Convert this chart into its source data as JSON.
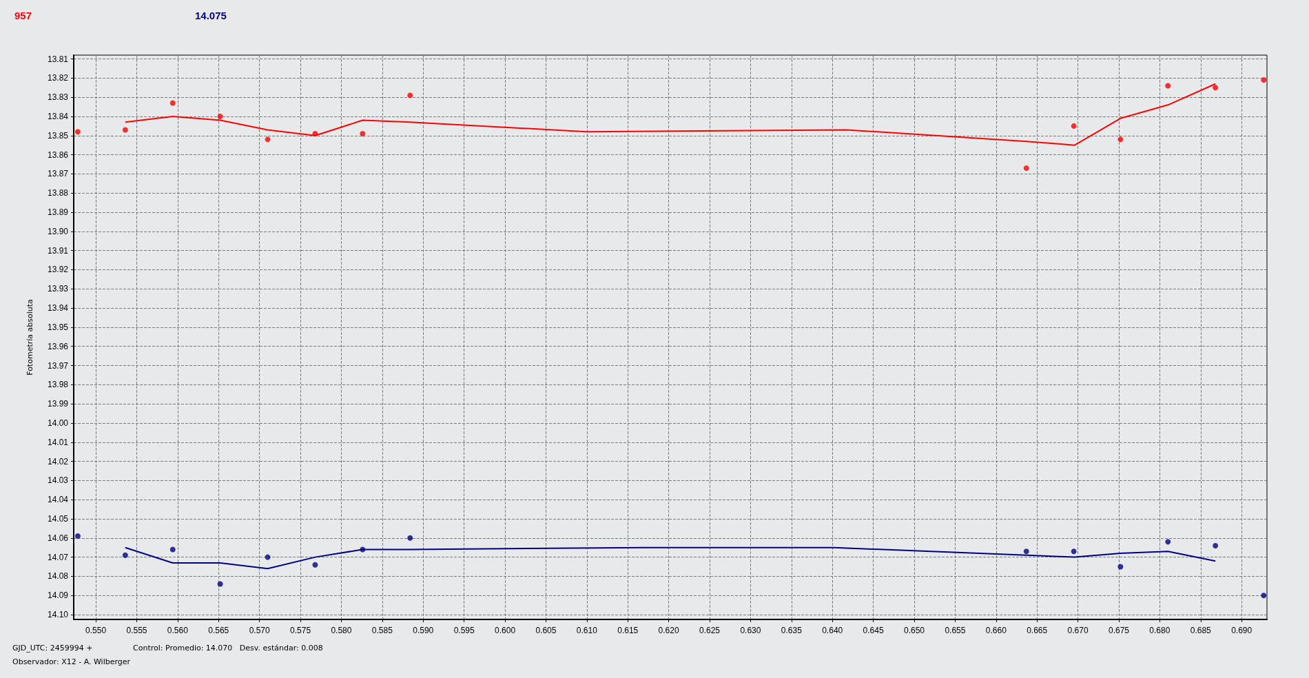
{
  "chart_data": {
    "type": "scatter",
    "title": "957",
    "subtitle": "14.075",
    "ylabel": "Fotometría absoluta",
    "annotations": [
      "GJD_UTC: 2459994 +",
      "Observador: X12 - A. Wilberger",
      "Control: Promedio: 14.070   Desv. estándar: 0.008"
    ],
    "xlim": [
      0.5473,
      0.6931
    ],
    "xticks": [
      {
        "value": 0.55,
        "label": "0.550"
      },
      {
        "value": 0.555,
        "label": "0.555"
      },
      {
        "value": 0.56,
        "label": "0.560"
      },
      {
        "value": 0.565,
        "label": "0.565"
      },
      {
        "value": 0.57,
        "label": "0.570"
      },
      {
        "value": 0.575,
        "label": "0.575"
      },
      {
        "value": 0.58,
        "label": "0.580"
      },
      {
        "value": 0.585,
        "label": "0.585"
      },
      {
        "value": 0.59,
        "label": "0.590"
      },
      {
        "value": 0.595,
        "label": "0.595"
      },
      {
        "value": 0.6,
        "label": "0.600"
      },
      {
        "value": 0.605,
        "label": "0.605"
      },
      {
        "value": 0.61,
        "label": "0.610"
      },
      {
        "value": 0.615,
        "label": "0.615"
      },
      {
        "value": 0.62,
        "label": "0.620"
      },
      {
        "value": 0.625,
        "label": "0.625"
      },
      {
        "value": 0.63,
        "label": "0.630"
      },
      {
        "value": 0.635,
        "label": "0.635"
      },
      {
        "value": 0.64,
        "label": "0.640"
      },
      {
        "value": 0.645,
        "label": "0.645"
      },
      {
        "value": 0.65,
        "label": "0.650"
      },
      {
        "value": 0.655,
        "label": "0.655"
      },
      {
        "value": 0.66,
        "label": "0.660"
      },
      {
        "value": 0.665,
        "label": "0.665"
      },
      {
        "value": 0.67,
        "label": "0.670"
      },
      {
        "value": 0.675,
        "label": "0.675"
      },
      {
        "value": 0.68,
        "label": "0.680"
      },
      {
        "value": 0.685,
        "label": "0.685"
      },
      {
        "value": 0.69,
        "label": "0.690"
      }
    ],
    "ylim": [
      14.1025,
      13.808
    ],
    "yticks": [
      13.81,
      13.82,
      13.83,
      13.84,
      13.85,
      13.86,
      13.87,
      13.88,
      13.89,
      {
        "value": 13.9,
        "label": "13.90"
      },
      13.91,
      13.92,
      13.93,
      13.94,
      13.95,
      13.96,
      13.97,
      13.98,
      13.99,
      {
        "value": 14.0,
        "label": "14.00"
      },
      14.01,
      14.02,
      14.03,
      14.04,
      14.05,
      14.06,
      14.07,
      14.08,
      14.09,
      {
        "value": 14.1,
        "label": "14.10"
      }
    ],
    "grid": true,
    "series": [
      {
        "marker": "circle",
        "color": "#ff0000",
        "x": [
          0.5478,
          0.5536,
          0.5594,
          0.5652,
          0.571,
          0.5768,
          0.5826,
          0.5884,
          0.6637,
          0.6695,
          0.6752,
          0.681,
          0.6868,
          0.6927
        ],
        "values": [
          13.848,
          13.847,
          13.833,
          13.84,
          13.852,
          13.849,
          13.849,
          13.829,
          13.867,
          13.845,
          13.852,
          13.824,
          13.825,
          13.821
        ]
      },
      {
        "type": "line",
        "marker": "none",
        "line_style": "solid",
        "color": "#ff0000",
        "x": [
          0.5536,
          0.5594,
          0.5652,
          0.571,
          0.5768,
          0.5826,
          0.5884,
          0.61,
          0.6417,
          0.6637,
          0.6696,
          0.6752,
          0.681,
          0.6868
        ],
        "values": [
          13.843,
          13.84,
          13.842,
          13.847,
          13.85,
          13.842,
          13.843,
          13.848,
          13.847,
          13.853,
          13.855,
          13.841,
          13.834,
          13.823
        ]
      },
      {
        "marker": "circle",
        "color": "#000080",
        "x": [
          0.5478,
          0.5536,
          0.5594,
          0.5652,
          0.571,
          0.5768,
          0.5826,
          0.5884,
          0.6637,
          0.6695,
          0.6752,
          0.681,
          0.6868,
          0.6927
        ],
        "values": [
          14.059,
          14.069,
          14.066,
          14.084,
          14.07,
          14.074,
          14.066,
          14.06,
          14.067,
          14.067,
          14.075,
          14.062,
          14.064,
          14.09
        ]
      },
      {
        "type": "line",
        "marker": "none",
        "line_style": "solid",
        "color": "#000080",
        "x": [
          0.5536,
          0.5594,
          0.5652,
          0.571,
          0.5768,
          0.5826,
          0.5884,
          0.6169,
          0.6402,
          0.6637,
          0.6696,
          0.6752,
          0.681,
          0.6868
        ],
        "values": [
          14.065,
          14.073,
          14.073,
          14.076,
          14.07,
          14.066,
          14.066,
          14.065,
          14.065,
          14.069,
          14.07,
          14.068,
          14.067,
          14.072
        ]
      }
    ]
  }
}
